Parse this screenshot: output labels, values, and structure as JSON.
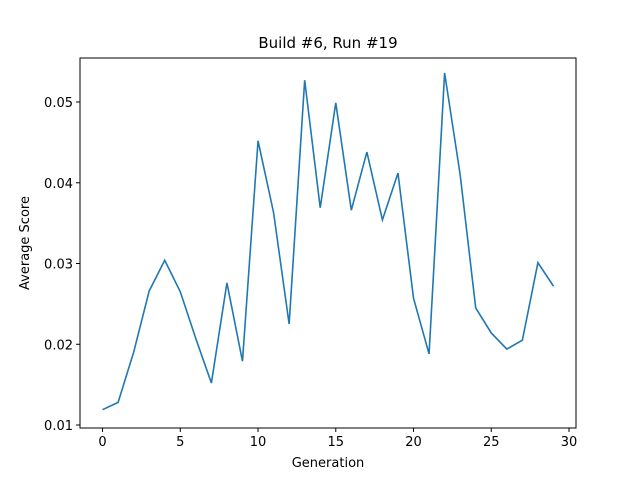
{
  "chart_data": {
    "type": "line",
    "title": "Build #6, Run #19",
    "x_label": "Generation",
    "y_label": "Average Score",
    "x": [
      0,
      1,
      2,
      3,
      4,
      5,
      6,
      7,
      8,
      9,
      10,
      11,
      12,
      13,
      14,
      15,
      16,
      17,
      18,
      19,
      20,
      21,
      22,
      23,
      24,
      25,
      26,
      27,
      28,
      29
    ],
    "series": [
      {
        "name": "Average Score",
        "color": "#1f77b4",
        "values": [
          0.0119,
          0.0128,
          0.019,
          0.0266,
          0.0304,
          0.0265,
          0.0207,
          0.0152,
          0.0276,
          0.0179,
          0.0452,
          0.0363,
          0.0225,
          0.0527,
          0.0369,
          0.0499,
          0.0366,
          0.0438,
          0.0354,
          0.0412,
          0.0257,
          0.0188,
          0.0536,
          0.041,
          0.0245,
          0.0214,
          0.0194,
          0.0205,
          0.0301,
          0.0272
        ]
      }
    ],
    "xlim": [
      -1.45,
      30.45
    ],
    "xticks": [
      0,
      5,
      10,
      15,
      20,
      25,
      30
    ],
    "ylim": [
      0.00963,
      0.05545
    ],
    "yticks": [
      0.01,
      0.02,
      0.03,
      0.04,
      0.05
    ]
  }
}
